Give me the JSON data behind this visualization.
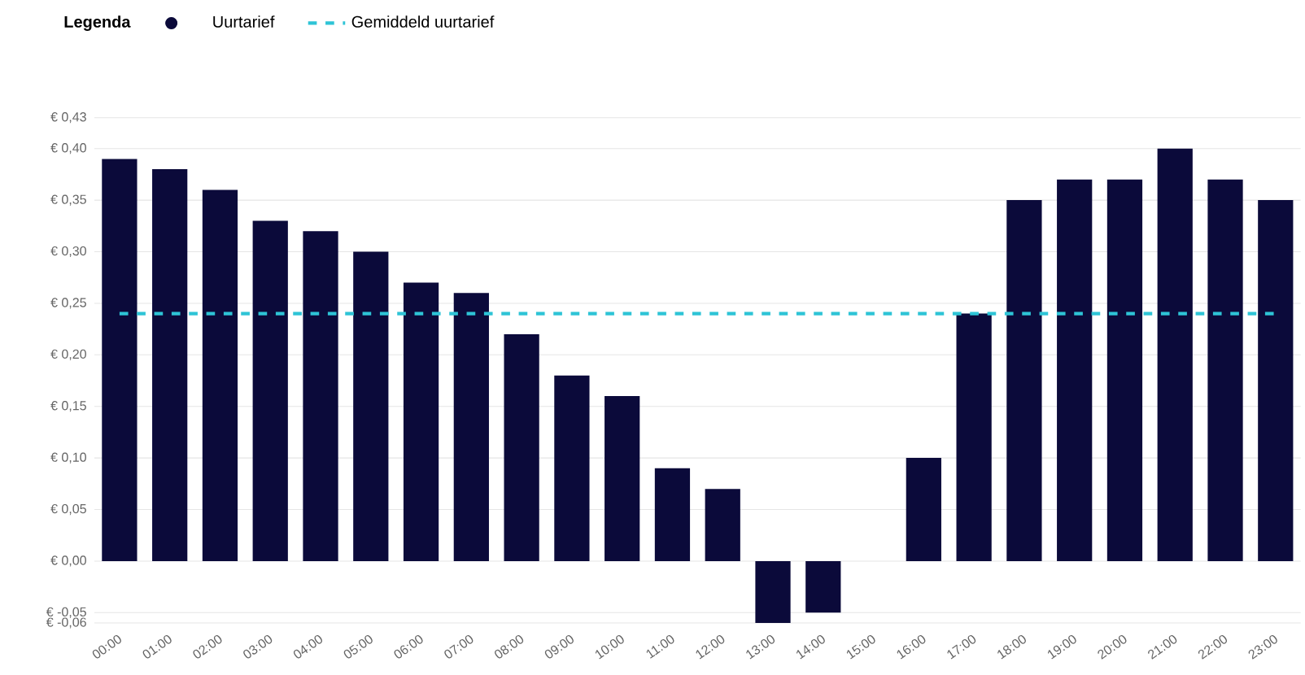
{
  "chart_data": {
    "type": "bar",
    "legend_title": "Legenda",
    "legend": "top left",
    "grid": "y",
    "categories": [
      "00:00",
      "01:00",
      "02:00",
      "03:00",
      "04:00",
      "05:00",
      "06:00",
      "07:00",
      "08:00",
      "09:00",
      "10:00",
      "11:00",
      "12:00",
      "13:00",
      "14:00",
      "15:00",
      "16:00",
      "17:00",
      "18:00",
      "19:00",
      "20:00",
      "21:00",
      "22:00",
      "23:00"
    ],
    "series": [
      {
        "name": "Uurtarief",
        "color": "#0b0a3a",
        "values": [
          0.39,
          0.38,
          0.36,
          0.33,
          0.32,
          0.3,
          0.27,
          0.26,
          0.22,
          0.18,
          0.16,
          0.09,
          0.07,
          -0.06,
          -0.05,
          0,
          0.1,
          0.24,
          0.35,
          0.37,
          0.37,
          0.4,
          0.37,
          0.35
        ]
      }
    ],
    "ref_lines": [
      {
        "axis": "y",
        "value": 0.24,
        "label": "Gemiddeld uurtarief",
        "color": "#2ec4d6",
        "line_style": "dashed"
      }
    ],
    "ylim": [
      -0.06,
      0.43
    ],
    "yticks": [
      {
        "value": -0.06,
        "label": "€ -0,06"
      },
      {
        "value": -0.05,
        "label": "€ -0,05"
      },
      {
        "value": 0,
        "label": "€ 0,00"
      },
      {
        "value": 0.05,
        "label": "€ 0,05"
      },
      {
        "value": 0.1,
        "label": "€ 0,10"
      },
      {
        "value": 0.15,
        "label": "€ 0,15"
      },
      {
        "value": 0.2,
        "label": "€ 0,20"
      },
      {
        "value": 0.25,
        "label": "€ 0,25"
      },
      {
        "value": 0.3,
        "label": "€ 0,30"
      },
      {
        "value": 0.35,
        "label": "€ 0,35"
      },
      {
        "value": 0.4,
        "label": "€ 0,40"
      },
      {
        "value": 0.43,
        "label": "€ 0,43"
      }
    ]
  }
}
